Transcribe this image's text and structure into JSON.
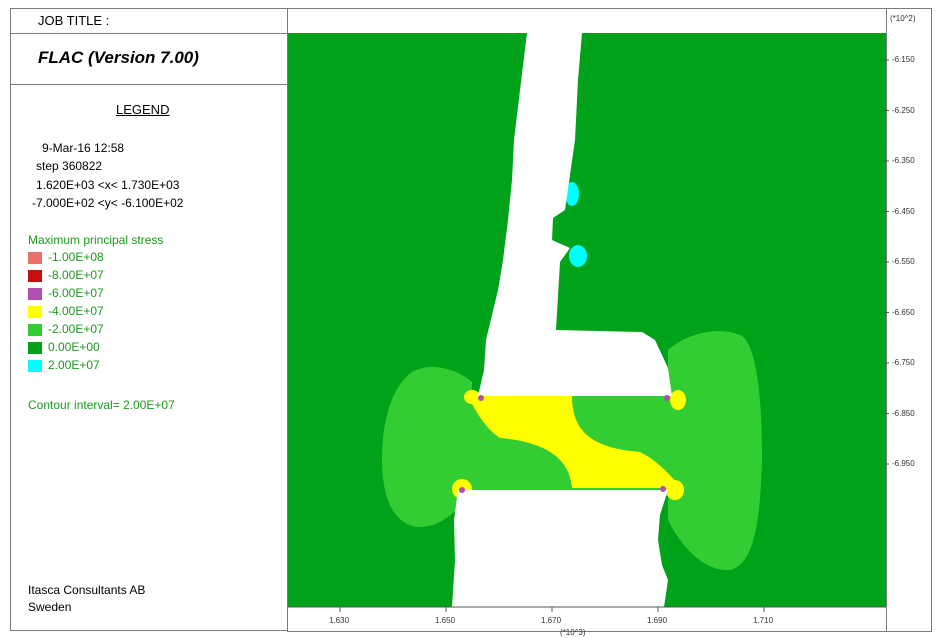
{
  "header": {
    "job_title": "JOB TITLE :"
  },
  "program": {
    "title": "FLAC (Version 7.00)"
  },
  "legend": {
    "heading": "LEGEND",
    "date": "9-Mar-16  12:58",
    "step": "step   360822",
    "x_range": "1.620E+03 <x<  1.730E+03",
    "y_range": "-7.000E+02 <y< -6.100E+02",
    "contour_title": "Maximum principal stress",
    "contour_interval": "Contour interval=  2.00E+07",
    "items": [
      {
        "label": "-1.00E+08",
        "color": "#e8716b"
      },
      {
        "label": "-8.00E+07",
        "color": "#c81010"
      },
      {
        "label": "-6.00E+07",
        "color": "#b04fb0"
      },
      {
        "label": "-4.00E+07",
        "color": "#ffff00"
      },
      {
        "label": "-2.00E+07",
        "color": "#33cc33"
      },
      {
        "label": "0.00E+00",
        "color": "#00a21a"
      },
      {
        "label": "2.00E+07",
        "color": "#00ffff"
      }
    ]
  },
  "company": {
    "line1": "Itasca Consultants AB",
    "line2": "Sweden"
  },
  "axes": {
    "y_multiplier": "(*10^2)",
    "x_multiplier": "(*10^3)",
    "y_ticks": [
      "-6.150",
      "-6.250",
      "-6.350",
      "-6.450",
      "-6.550",
      "-6.650",
      "-6.750",
      "-6.850",
      "-6.950"
    ],
    "x_ticks": [
      "1.630",
      "1.650",
      "1.670",
      "1.690",
      "1.710"
    ]
  },
  "colors": {
    "background_field": "#00a21a",
    "light_green": "#33cc33",
    "yellow": "#ffff00",
    "cyan": "#00ffff",
    "magenta": "#b04fb0",
    "opening": "#ffffff",
    "legend_text": "#1a9a1a"
  }
}
